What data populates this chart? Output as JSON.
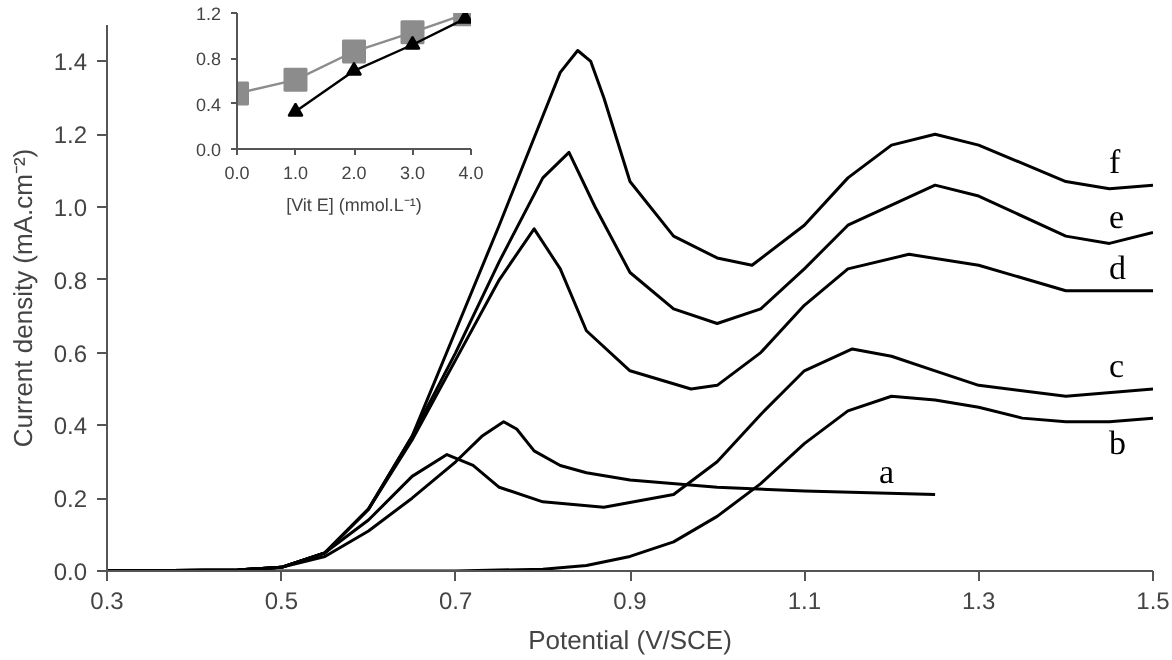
{
  "chart_data": [
    {
      "type": "line",
      "xlabel": "Potential (V/SCE)",
      "ylabel": "Current density (mA.cm⁻²)",
      "xlim": [
        0.3,
        1.5
      ],
      "ylim": [
        0,
        1.5
      ],
      "xticks": [
        0.3,
        0.5,
        0.7,
        0.9,
        1.1,
        1.3,
        1.5
      ],
      "yticks": [
        {
          "value": 0,
          "label": "0.0"
        },
        {
          "value": 0.2,
          "label": "0.2"
        },
        {
          "value": 0.4,
          "label": "0.4"
        },
        {
          "value": 0.6,
          "label": "0.6"
        },
        {
          "value": 0.8,
          "label": "0.8"
        },
        {
          "value": 1.0,
          "label": "1.0"
        },
        {
          "value": 1.2,
          "label": "1.2"
        },
        {
          "value": 1.4,
          "label": "1.4"
        }
      ],
      "grid": false,
      "marker": "none",
      "line_style": "solid",
      "series": [
        {
          "name": "a",
          "color": "#000000",
          "x": [
            0.3,
            0.45,
            0.5,
            0.55,
            0.6,
            0.65,
            0.7,
            0.73,
            0.755,
            0.77,
            0.79,
            0.82,
            0.85,
            0.9,
            1.0,
            1.1,
            1.25
          ],
          "values": [
            0,
            0.003,
            0.01,
            0.04,
            0.11,
            0.2,
            0.3,
            0.37,
            0.41,
            0.39,
            0.33,
            0.29,
            0.27,
            0.25,
            0.23,
            0.22,
            0.21
          ]
        },
        {
          "name": "b",
          "color": "#000000",
          "x": [
            0.3,
            0.7,
            0.8,
            0.85,
            0.9,
            0.95,
            1.0,
            1.05,
            1.1,
            1.15,
            1.2,
            1.25,
            1.3,
            1.35,
            1.4,
            1.45,
            1.5
          ],
          "values": [
            0,
            0,
            0.005,
            0.015,
            0.04,
            0.08,
            0.15,
            0.24,
            0.35,
            0.44,
            0.48,
            0.47,
            0.45,
            0.42,
            0.41,
            0.41,
            0.42
          ]
        },
        {
          "name": "c",
          "color": "#000000",
          "x": [
            0.3,
            0.45,
            0.5,
            0.55,
            0.6,
            0.65,
            0.69,
            0.72,
            0.75,
            0.8,
            0.87,
            0.95,
            1.0,
            1.05,
            1.1,
            1.155,
            1.2,
            1.25,
            1.3,
            1.4,
            1.5
          ],
          "values": [
            0,
            0.003,
            0.01,
            0.05,
            0.14,
            0.26,
            0.32,
            0.29,
            0.23,
            0.19,
            0.175,
            0.21,
            0.3,
            0.43,
            0.55,
            0.61,
            0.59,
            0.55,
            0.51,
            0.48,
            0.5
          ]
        },
        {
          "name": "d",
          "color": "#000000",
          "x": [
            0.3,
            0.45,
            0.5,
            0.55,
            0.6,
            0.65,
            0.7,
            0.75,
            0.79,
            0.82,
            0.85,
            0.9,
            0.97,
            1.0,
            1.05,
            1.1,
            1.15,
            1.22,
            1.3,
            1.4,
            1.5
          ],
          "values": [
            0,
            0.003,
            0.01,
            0.05,
            0.17,
            0.36,
            0.58,
            0.8,
            0.94,
            0.83,
            0.66,
            0.55,
            0.5,
            0.51,
            0.6,
            0.73,
            0.83,
            0.87,
            0.84,
            0.77,
            0.77
          ]
        },
        {
          "name": "e",
          "color": "#000000",
          "x": [
            0.3,
            0.45,
            0.5,
            0.55,
            0.6,
            0.65,
            0.7,
            0.75,
            0.8,
            0.83,
            0.86,
            0.9,
            0.95,
            1.0,
            1.05,
            1.1,
            1.15,
            1.25,
            1.3,
            1.4,
            1.45,
            1.5
          ],
          "values": [
            0,
            0.003,
            0.01,
            0.05,
            0.17,
            0.37,
            0.6,
            0.85,
            1.08,
            1.15,
            1.0,
            0.82,
            0.72,
            0.68,
            0.72,
            0.83,
            0.95,
            1.06,
            1.03,
            0.92,
            0.9,
            0.93
          ]
        },
        {
          "name": "f",
          "color": "#000000",
          "x": [
            0.3,
            0.45,
            0.5,
            0.55,
            0.6,
            0.65,
            0.7,
            0.75,
            0.8,
            0.82,
            0.84,
            0.855,
            0.87,
            0.9,
            0.95,
            1.0,
            1.04,
            1.1,
            1.15,
            1.2,
            1.25,
            1.3,
            1.4,
            1.45,
            1.5
          ],
          "values": [
            0,
            0.003,
            0.01,
            0.05,
            0.17,
            0.37,
            0.66,
            0.95,
            1.25,
            1.37,
            1.43,
            1.4,
            1.3,
            1.07,
            0.92,
            0.86,
            0.84,
            0.95,
            1.08,
            1.17,
            1.2,
            1.17,
            1.07,
            1.05,
            1.06
          ]
        }
      ]
    },
    {
      "type": "line",
      "xlabel": "[Vit E] (mmol.L⁻¹)",
      "xlim": [
        0,
        4
      ],
      "ylim": [
        0,
        1.2
      ],
      "xticks": [
        {
          "value": 0,
          "label": "0.0"
        },
        {
          "value": 1,
          "label": "1.0"
        },
        {
          "value": 2,
          "label": "2.0"
        },
        {
          "value": 3,
          "label": "3.0"
        },
        {
          "value": 4,
          "label": "4.0"
        }
      ],
      "yticks": [
        {
          "value": 0,
          "label": "0.0"
        },
        {
          "value": 0.4,
          "label": "0.4"
        },
        {
          "value": 0.8,
          "label": "0.8"
        },
        {
          "value": 1.2,
          "label": "1.2"
        }
      ],
      "grid": false,
      "line_style": "solid",
      "series": [
        {
          "color": "#8c8c8c",
          "marker": "square",
          "x": [
            0,
            1,
            2,
            3,
            3.9
          ],
          "values": [
            0.49,
            0.61,
            0.86,
            1.03,
            1.19
          ]
        },
        {
          "color": "#000000",
          "marker": "triangle",
          "x": [
            1,
            2,
            3,
            3.9
          ],
          "values": [
            0.33,
            0.69,
            0.92,
            1.15
          ]
        }
      ]
    }
  ]
}
